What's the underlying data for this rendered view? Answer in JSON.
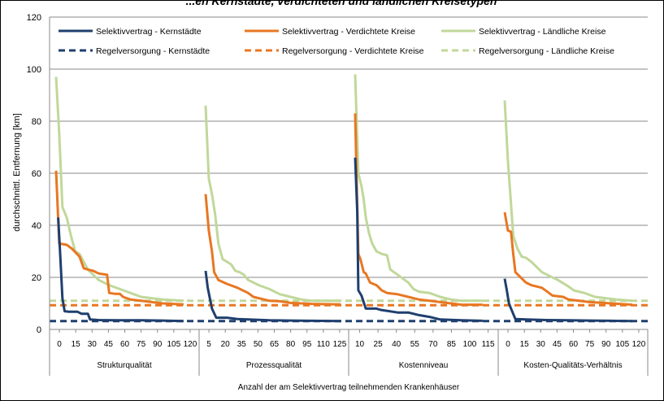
{
  "chart_data": {
    "type": "line",
    "title": "...en Kernstädte, verdichteten und ländlichen Kreisetypen",
    "ylabel": "durchschnittl. Entfernung [km]",
    "xlabel": "Anzahl der am Selektivvertrag teilnehmenden Krankenhäuser",
    "ylim": [
      0,
      120
    ],
    "yticks": [
      0,
      20,
      40,
      60,
      80,
      100,
      120
    ],
    "grid": true,
    "legend_position": "top",
    "groups": [
      {
        "name": "Strukturqualität",
        "ticks": [
          "0",
          "15",
          "30",
          "45",
          "60",
          "75",
          "90",
          "105",
          "120"
        ]
      },
      {
        "name": "Prozessqualität",
        "ticks": [
          "5",
          "20",
          "35",
          "50",
          "65",
          "80",
          "95",
          "110",
          "125"
        ]
      },
      {
        "name": "Kostenniveau",
        "ticks": [
          "10",
          "25",
          "40",
          "55",
          "70",
          "85",
          "100",
          "115"
        ]
      },
      {
        "name": "Kosten-Qualitäts-Verhältnis",
        "ticks": [
          "0",
          "15",
          "30",
          "45",
          "60",
          "75",
          "90",
          "105",
          "120"
        ]
      }
    ],
    "series": [
      {
        "name": "Selektivvertrag - Kernstädte",
        "color": "#1f3f6e",
        "dash": false,
        "values": [
          [
            [
              2,
              43
            ],
            [
              4,
              28
            ],
            [
              6,
              12
            ],
            [
              8,
              7
            ],
            [
              12,
              6.8
            ],
            [
              20,
              6.8
            ],
            [
              24,
              6
            ],
            [
              30,
              6
            ],
            [
              32,
              3.8
            ],
            [
              40,
              3.6
            ],
            [
              60,
              3.5
            ],
            [
              80,
              3.5
            ],
            [
              100,
              3.4
            ],
            [
              120,
              3.2
            ]
          ],
          [
            [
              0,
              22.5
            ],
            [
              2,
              16
            ],
            [
              4,
              12
            ],
            [
              6,
              8
            ],
            [
              10,
              4.5
            ],
            [
              20,
              4.5
            ],
            [
              30,
              4
            ],
            [
              40,
              3.8
            ],
            [
              60,
              3.5
            ],
            [
              80,
              3.4
            ],
            [
              100,
              3.3
            ],
            [
              127,
              3.2
            ]
          ],
          [
            [
              0,
              66
            ],
            [
              2,
              45
            ],
            [
              3,
              15
            ],
            [
              6,
              13
            ],
            [
              10,
              8
            ],
            [
              20,
              8
            ],
            [
              24,
              7.5
            ],
            [
              40,
              6.5
            ],
            [
              50,
              6.5
            ],
            [
              60,
              5.5
            ],
            [
              70,
              4.8
            ],
            [
              80,
              3.8
            ],
            [
              100,
              3.5
            ],
            [
              120,
              3.3
            ]
          ],
          [
            [
              0,
              19.5
            ],
            [
              2,
              15
            ],
            [
              4,
              10
            ],
            [
              6,
              8
            ],
            [
              10,
              4
            ],
            [
              20,
              3.8
            ],
            [
              40,
              3.6
            ],
            [
              60,
              3.5
            ],
            [
              80,
              3.4
            ],
            [
              100,
              3.3
            ],
            [
              120,
              3.2
            ]
          ]
        ]
      },
      {
        "name": "Selektivvertrag - Verdichtete Kreise",
        "color": "#e87722",
        "dash": false,
        "values": [
          [
            [
              0,
              61
            ],
            [
              3,
              33
            ],
            [
              10,
              32.5
            ],
            [
              15,
              31
            ],
            [
              22,
              28
            ],
            [
              26,
              23.5
            ],
            [
              30,
              23
            ],
            [
              35,
              22.5
            ],
            [
              40,
              21.5
            ],
            [
              48,
              21
            ],
            [
              50,
              14
            ],
            [
              55,
              13.7
            ],
            [
              60,
              13.7
            ],
            [
              63,
              12.5
            ],
            [
              70,
              11.5
            ],
            [
              80,
              11
            ],
            [
              90,
              10.5
            ],
            [
              100,
              10
            ],
            [
              110,
              9.8
            ],
            [
              120,
              9.6
            ]
          ],
          [
            [
              0,
              52
            ],
            [
              3,
              38
            ],
            [
              6,
              30
            ],
            [
              8,
              22
            ],
            [
              12,
              19
            ],
            [
              20,
              17.5
            ],
            [
              30,
              16
            ],
            [
              40,
              14
            ],
            [
              45,
              12.5
            ],
            [
              55,
              11.5
            ],
            [
              60,
              11
            ],
            [
              70,
              10.8
            ],
            [
              80,
              10.2
            ],
            [
              100,
              9.8
            ],
            [
              127,
              9.6
            ]
          ],
          [
            [
              0,
              83
            ],
            [
              3,
              29
            ],
            [
              5,
              27
            ],
            [
              8,
              22
            ],
            [
              10,
              21.5
            ],
            [
              14,
              18
            ],
            [
              20,
              17
            ],
            [
              25,
              15
            ],
            [
              30,
              14
            ],
            [
              40,
              13.5
            ],
            [
              50,
              12.5
            ],
            [
              60,
              11.5
            ],
            [
              70,
              11
            ],
            [
              80,
              10.5
            ],
            [
              90,
              10
            ],
            [
              100,
              9.5
            ],
            [
              120,
              9.5
            ]
          ],
          [
            [
              0,
              45
            ],
            [
              3,
              38
            ],
            [
              6,
              37.5
            ],
            [
              8,
              29
            ],
            [
              10,
              22
            ],
            [
              15,
              20
            ],
            [
              20,
              18
            ],
            [
              25,
              17
            ],
            [
              30,
              16.5
            ],
            [
              35,
              16
            ],
            [
              40,
              14.5
            ],
            [
              45,
              13
            ],
            [
              55,
              12.5
            ],
            [
              60,
              11.5
            ],
            [
              70,
              11
            ],
            [
              80,
              10.5
            ],
            [
              100,
              10
            ],
            [
              120,
              9.5
            ]
          ]
        ]
      },
      {
        "name": "Selektivvertrag - Ländliche Kreise",
        "color": "#c0d89a",
        "dash": false,
        "values": [
          [
            [
              0,
              97
            ],
            [
              3,
              75
            ],
            [
              6,
              47
            ],
            [
              10,
              43
            ],
            [
              14,
              36
            ],
            [
              18,
              30
            ],
            [
              22,
              29
            ],
            [
              26,
              26
            ],
            [
              30,
              23
            ],
            [
              35,
              21
            ],
            [
              40,
              19
            ],
            [
              50,
              17
            ],
            [
              60,
              15.5
            ],
            [
              70,
              14
            ],
            [
              80,
              12.5
            ],
            [
              90,
              12
            ],
            [
              100,
              11.5
            ],
            [
              120,
              11
            ]
          ],
          [
            [
              0,
              86
            ],
            [
              3,
              58
            ],
            [
              6,
              52
            ],
            [
              9,
              44
            ],
            [
              12,
              33
            ],
            [
              16,
              27
            ],
            [
              20,
              26
            ],
            [
              24,
              25
            ],
            [
              28,
              22.5
            ],
            [
              32,
              22
            ],
            [
              36,
              21
            ],
            [
              40,
              19
            ],
            [
              50,
              17
            ],
            [
              60,
              15.5
            ],
            [
              70,
              13.5
            ],
            [
              80,
              12.5
            ],
            [
              90,
              11.5
            ],
            [
              100,
              11
            ],
            [
              127,
              11
            ]
          ],
          [
            [
              0,
              98
            ],
            [
              3,
              60
            ],
            [
              6,
              55
            ],
            [
              8,
              50
            ],
            [
              10,
              43
            ],
            [
              13,
              37
            ],
            [
              16,
              33
            ],
            [
              20,
              30
            ],
            [
              25,
              29
            ],
            [
              30,
              28.5
            ],
            [
              33,
              23
            ],
            [
              40,
              21
            ],
            [
              50,
              18
            ],
            [
              55,
              15.5
            ],
            [
              60,
              14.5
            ],
            [
              70,
              14
            ],
            [
              80,
              12.5
            ],
            [
              90,
              11.5
            ],
            [
              100,
              11
            ],
            [
              120,
              11
            ]
          ],
          [
            [
              0,
              88
            ],
            [
              3,
              65
            ],
            [
              6,
              48
            ],
            [
              8,
              36
            ],
            [
              12,
              31
            ],
            [
              16,
              28
            ],
            [
              20,
              27.5
            ],
            [
              25,
              26
            ],
            [
              30,
              24
            ],
            [
              35,
              22
            ],
            [
              40,
              21
            ],
            [
              50,
              19
            ],
            [
              60,
              16.5
            ],
            [
              65,
              15
            ],
            [
              75,
              14
            ],
            [
              85,
              12.5
            ],
            [
              95,
              12
            ],
            [
              105,
              11.5
            ],
            [
              120,
              11
            ]
          ]
        ]
      },
      {
        "name": "Regelversorgung - Kernstädte",
        "color": "#1f3f6e",
        "dash": true,
        "level": 3.2
      },
      {
        "name": "Regelversorgung - Verdichtete Kreise",
        "color": "#e87722",
        "dash": true,
        "level": 9.3
      },
      {
        "name": "Regelversorgung - Ländliche Kreise",
        "color": "#c0d89a",
        "dash": true,
        "level": 11
      }
    ]
  }
}
